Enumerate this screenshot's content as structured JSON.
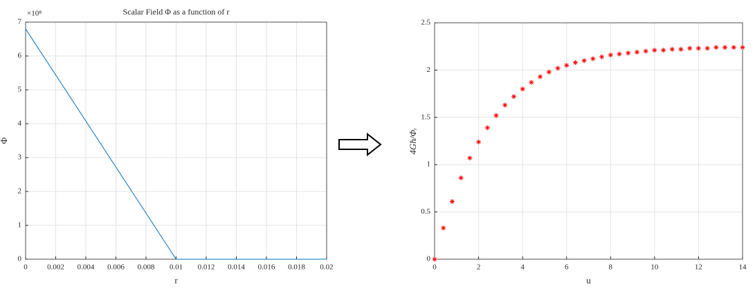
{
  "chart_data": [
    {
      "type": "line",
      "title": "Scalar Field Φ as a function of r",
      "xlabel": "r",
      "ylabel": "Φ",
      "y_multiplier": "×10⁸",
      "x": [
        0,
        0.01,
        0.02
      ],
      "series": [
        {
          "name": "Φ",
          "color": "#0072bd",
          "values": [
            6.8,
            0,
            0
          ]
        }
      ],
      "xlim": [
        0,
        0.02
      ],
      "xticks": [
        0,
        0.002,
        0.004,
        0.006,
        0.008,
        0.01,
        0.012,
        0.014,
        0.016,
        0.018,
        0.02
      ],
      "ylim": [
        0,
        7
      ],
      "yticks": [
        0,
        1,
        2,
        3,
        4,
        5,
        6,
        7
      ],
      "grid": true
    },
    {
      "type": "scatter",
      "xlabel": "u",
      "ylabel": "4Għ/Φᵣ",
      "x": [
        0,
        0.4,
        0.8,
        1.2,
        1.6,
        2.0,
        2.4,
        2.8,
        3.2,
        3.6,
        4.0,
        4.4,
        4.8,
        5.2,
        5.6,
        6.0,
        6.4,
        6.8,
        7.2,
        7.6,
        8.0,
        8.4,
        8.8,
        9.2,
        9.6,
        10.0,
        10.4,
        10.8,
        11.2,
        11.6,
        12.0,
        12.4,
        12.8,
        13.2,
        13.6,
        14.0
      ],
      "series": [
        {
          "name": "4Għ/Φᵣ",
          "color": "#ff0000",
          "values": [
            0,
            0.33,
            0.61,
            0.86,
            1.07,
            1.24,
            1.39,
            1.52,
            1.63,
            1.72,
            1.8,
            1.87,
            1.93,
            1.98,
            2.02,
            2.05,
            2.08,
            2.1,
            2.12,
            2.14,
            2.16,
            2.17,
            2.18,
            2.19,
            2.2,
            2.21,
            2.21,
            2.22,
            2.22,
            2.23,
            2.23,
            2.23,
            2.24,
            2.24,
            2.24,
            2.24
          ]
        }
      ],
      "xlim": [
        0,
        14
      ],
      "xticks": [
        0,
        2,
        4,
        6,
        8,
        10,
        12,
        14
      ],
      "ylim": [
        0,
        2.5
      ],
      "yticks": [
        0,
        0.5,
        1,
        1.5,
        2,
        2.5
      ],
      "grid": true
    }
  ]
}
